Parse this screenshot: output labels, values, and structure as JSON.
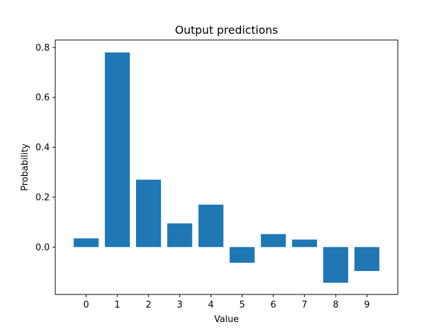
{
  "chart_data": {
    "type": "bar",
    "title": "Output predictions",
    "xlabel": "Value",
    "ylabel": "Probability",
    "categories": [
      "0",
      "1",
      "2",
      "3",
      "4",
      "5",
      "6",
      "7",
      "8",
      "9"
    ],
    "values": [
      0.035,
      0.78,
      0.27,
      0.095,
      0.17,
      -0.063,
      0.052,
      0.03,
      -0.143,
      -0.096
    ],
    "ylim": [
      -0.19,
      0.83
    ],
    "yticks": [
      0.0,
      0.2,
      0.4,
      0.6,
      0.8
    ],
    "ytick_labels": [
      "0.0",
      "0.2",
      "0.4",
      "0.6",
      "0.8"
    ],
    "bar_color": "#1f77b4",
    "grid": false,
    "legend": "none"
  }
}
